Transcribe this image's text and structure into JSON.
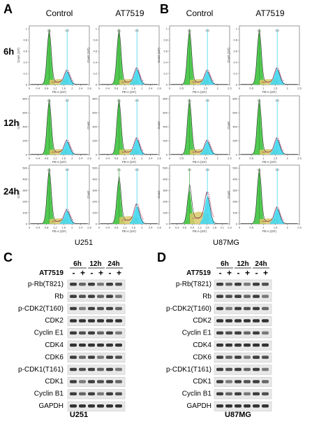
{
  "panels": {
    "A": "A",
    "B": "B",
    "C": "C",
    "D": "D"
  },
  "conditions": [
    "Control",
    "AT7519"
  ],
  "timepoints": [
    "6h",
    "12h",
    "24h"
  ],
  "cell_lines": [
    "U251",
    "U87MG"
  ],
  "flow": {
    "x_axis_label": "PE-A (10⁵)",
    "y_axis_label": "Count",
    "g1_label": "G1",
    "g2_label": "G2",
    "a_x_ticks": [
      "0",
      "0.4",
      "0.8",
      "1.2",
      "1.6",
      "2",
      "2.4",
      "2.8"
    ],
    "b_x_ticks": [
      "0",
      "0.5",
      "1",
      "1.5",
      "2",
      "2.5"
    ],
    "b_x_ticks_alt": [
      "0",
      "0.3",
      "0.6",
      "0.9",
      "1.2",
      "1.5",
      "1.8",
      "2.1",
      "2.3"
    ],
    "y_ticks_6h": [
      "0",
      "0.2",
      "0.4",
      "0.6",
      "0.8",
      "1"
    ],
    "y_ticks_6h_label": "Count (10³)",
    "y_ticks_12h": [
      "0",
      "200",
      "400",
      "600",
      "800"
    ],
    "y_ticks_24h": [
      "0",
      "100",
      "200",
      "300",
      "400",
      "500"
    ]
  },
  "blot": {
    "treatment_label": "AT7519",
    "signs": [
      "-",
      "+",
      "-",
      "+",
      "-",
      "+"
    ],
    "proteins_c": [
      "p-Rb(T821)",
      "Rb",
      "p-CDK2(T160)",
      "CDK2",
      "Cyclin E1",
      "CDK4",
      "CDK6",
      "p-CDK1(T161)",
      "CDK1",
      "Cyclin B1",
      "GAPDH"
    ],
    "proteins_d": [
      "p-Rb(T821)",
      "Rb",
      "p-CDK2(T160)",
      "CDK2",
      "Cyclin E1",
      "CDK4",
      "CDK6",
      "p-CDK1(T161)",
      "CDK1",
      "Cyclin B1",
      "GAPDH"
    ]
  },
  "colors": {
    "g1_fill": "#3fc33f",
    "s_fill": "#d9c96a",
    "g2_fill": "#45d7ee",
    "g2_marker": "#46d9f0",
    "fit_line": "#c0306a",
    "trace_line": "#2a2a2a",
    "band": "#1e1e1e"
  }
}
